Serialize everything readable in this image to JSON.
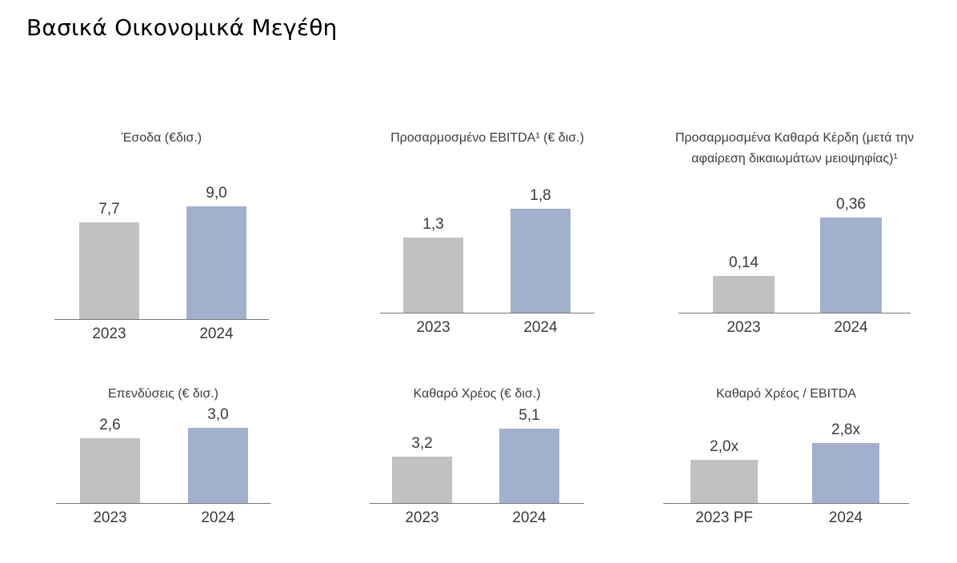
{
  "page": {
    "title": "Βασικά Οικονομικά Μεγέθη"
  },
  "colors": {
    "bar_2023": "#c1c1c1",
    "bar_2024": "#a1b1cd",
    "axis": "#777777"
  },
  "chart_data": [
    {
      "type": "bar",
      "title": "Έσοδα (€δισ.)",
      "categories": [
        "2023",
        "2024"
      ],
      "values": [
        7.7,
        9.0
      ],
      "labels": [
        "7,7",
        "9,0"
      ]
    },
    {
      "type": "bar",
      "title": "Προσαρμοσμένο EBITDA¹ (€ δισ.)",
      "categories": [
        "2023",
        "2024"
      ],
      "values": [
        1.3,
        1.8
      ],
      "labels": [
        "1,3",
        "1,8"
      ]
    },
    {
      "type": "bar",
      "title": "Προσαρμοσμένα Καθαρά Κέρδη (μετά την αφαίρεση δικαιωμάτων μειοψηφίας)¹",
      "categories": [
        "2023",
        "2024"
      ],
      "values": [
        0.14,
        0.36
      ],
      "labels": [
        "0,14",
        "0,36"
      ]
    },
    {
      "type": "bar",
      "title": "Επενδύσεις (€ δισ.)",
      "categories": [
        "2023",
        "2024"
      ],
      "values": [
        2.6,
        3.0
      ],
      "labels": [
        "2,6",
        "3,0"
      ]
    },
    {
      "type": "bar",
      "title": "Καθαρό Χρέος (€ δισ.)",
      "categories": [
        "2023",
        "2024"
      ],
      "values": [
        3.2,
        5.1
      ],
      "labels": [
        "3,2",
        "5,1"
      ]
    },
    {
      "type": "bar",
      "title": "Καθαρό Χρέος / EBITDA",
      "categories": [
        "2023 PF",
        "2024"
      ],
      "values": [
        2.0,
        2.8
      ],
      "labels": [
        "2,0x",
        "2,8x"
      ]
    }
  ]
}
